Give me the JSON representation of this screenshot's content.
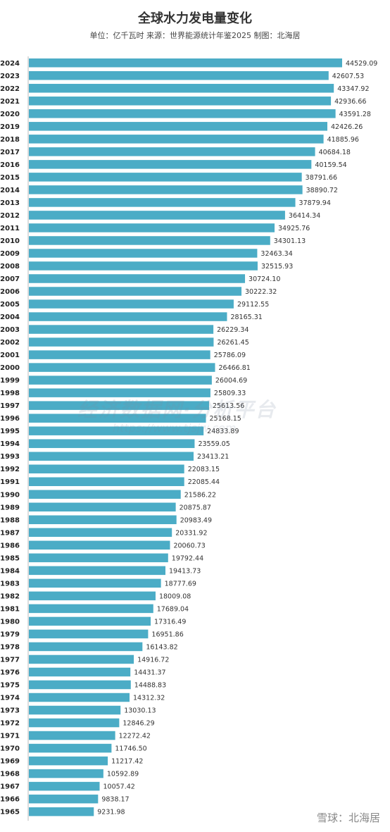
{
  "chart_data": {
    "type": "bar",
    "orientation": "horizontal",
    "title": "全球水力发电量变化",
    "subtitle": "单位：亿千瓦时 来源：世界能源统计年鉴2025 制图：北海居",
    "categories": [
      "2024",
      "2023",
      "2022",
      "2021",
      "2020",
      "2019",
      "2018",
      "2017",
      "2016",
      "2015",
      "2014",
      "2013",
      "2012",
      "2011",
      "2010",
      "2009",
      "2008",
      "2007",
      "2006",
      "2005",
      "2004",
      "2003",
      "2002",
      "2001",
      "2000",
      "1999",
      "1998",
      "1997",
      "1996",
      "1995",
      "1994",
      "1993",
      "1992",
      "1991",
      "1990",
      "1989",
      "1988",
      "1987",
      "1986",
      "1985",
      "1984",
      "1983",
      "1982",
      "1981",
      "1980",
      "1979",
      "1978",
      "1977",
      "1976",
      "1975",
      "1974",
      "1973",
      "1972",
      "1971",
      "1970",
      "1969",
      "1968",
      "1967",
      "1966",
      "1965"
    ],
    "values": [
      44529.09,
      42607.53,
      43347.92,
      42936.66,
      43591.28,
      42426.26,
      41885.96,
      40684.18,
      40159.54,
      38791.66,
      38890.72,
      37879.94,
      36414.34,
      34925.76,
      34301.13,
      32463.34,
      32515.93,
      30724.1,
      30222.32,
      29112.55,
      28165.31,
      26229.34,
      26261.45,
      25786.09,
      26466.81,
      26004.69,
      25809.33,
      25613.56,
      25168.15,
      24833.89,
      23559.05,
      23413.21,
      22083.15,
      22085.44,
      21586.22,
      20875.87,
      20983.49,
      20331.92,
      20060.73,
      19792.44,
      19413.73,
      18777.69,
      18009.08,
      17689.04,
      17316.49,
      16951.86,
      16143.82,
      14916.72,
      14431.37,
      14488.83,
      14312.32,
      13030.13,
      12846.29,
      12272.42,
      11746.5,
      11217.42,
      10592.89,
      10057.42,
      9838.17,
      9231.98
    ],
    "labels": [
      "44529.09",
      "42607.53",
      "43347.92",
      "42936.66",
      "43591.28",
      "42426.26",
      "41885.96",
      "40684.18",
      "40159.54",
      "38791.66",
      "38890.72",
      "37879.94",
      "36414.34",
      "34925.76",
      "34301.13",
      "32463.34",
      "32515.93",
      "30724.10",
      "30222.32",
      "29112.55",
      "28165.31",
      "26229.34",
      "26261.45",
      "25786.09",
      "26466.81",
      "26004.69",
      "25809.33",
      "25613.56",
      "25168.15",
      "24833.89",
      "23559.05",
      "23413.21",
      "22083.15",
      "22085.44",
      "21586.22",
      "20875.87",
      "20983.49",
      "20331.92",
      "20060.73",
      "19792.44",
      "19413.73",
      "18777.69",
      "18009.08",
      "17689.04",
      "17316.49",
      "16951.86",
      "16143.82",
      "14916.72",
      "14431.37",
      "14488.83",
      "14312.32",
      "13030.13",
      "12846.29",
      "12272.42",
      "11746.50",
      "11217.42",
      "10592.89",
      "10057.42",
      "9838.17",
      "9231.98"
    ],
    "xlim": [
      0,
      44529.09
    ],
    "grid": false,
    "bar_color": "#4BACC6"
  },
  "watermark": {
    "text": "经济数据网·分析平台",
    "url": "https://www.tjsjw.com"
  },
  "credit": "雪球：北海居"
}
